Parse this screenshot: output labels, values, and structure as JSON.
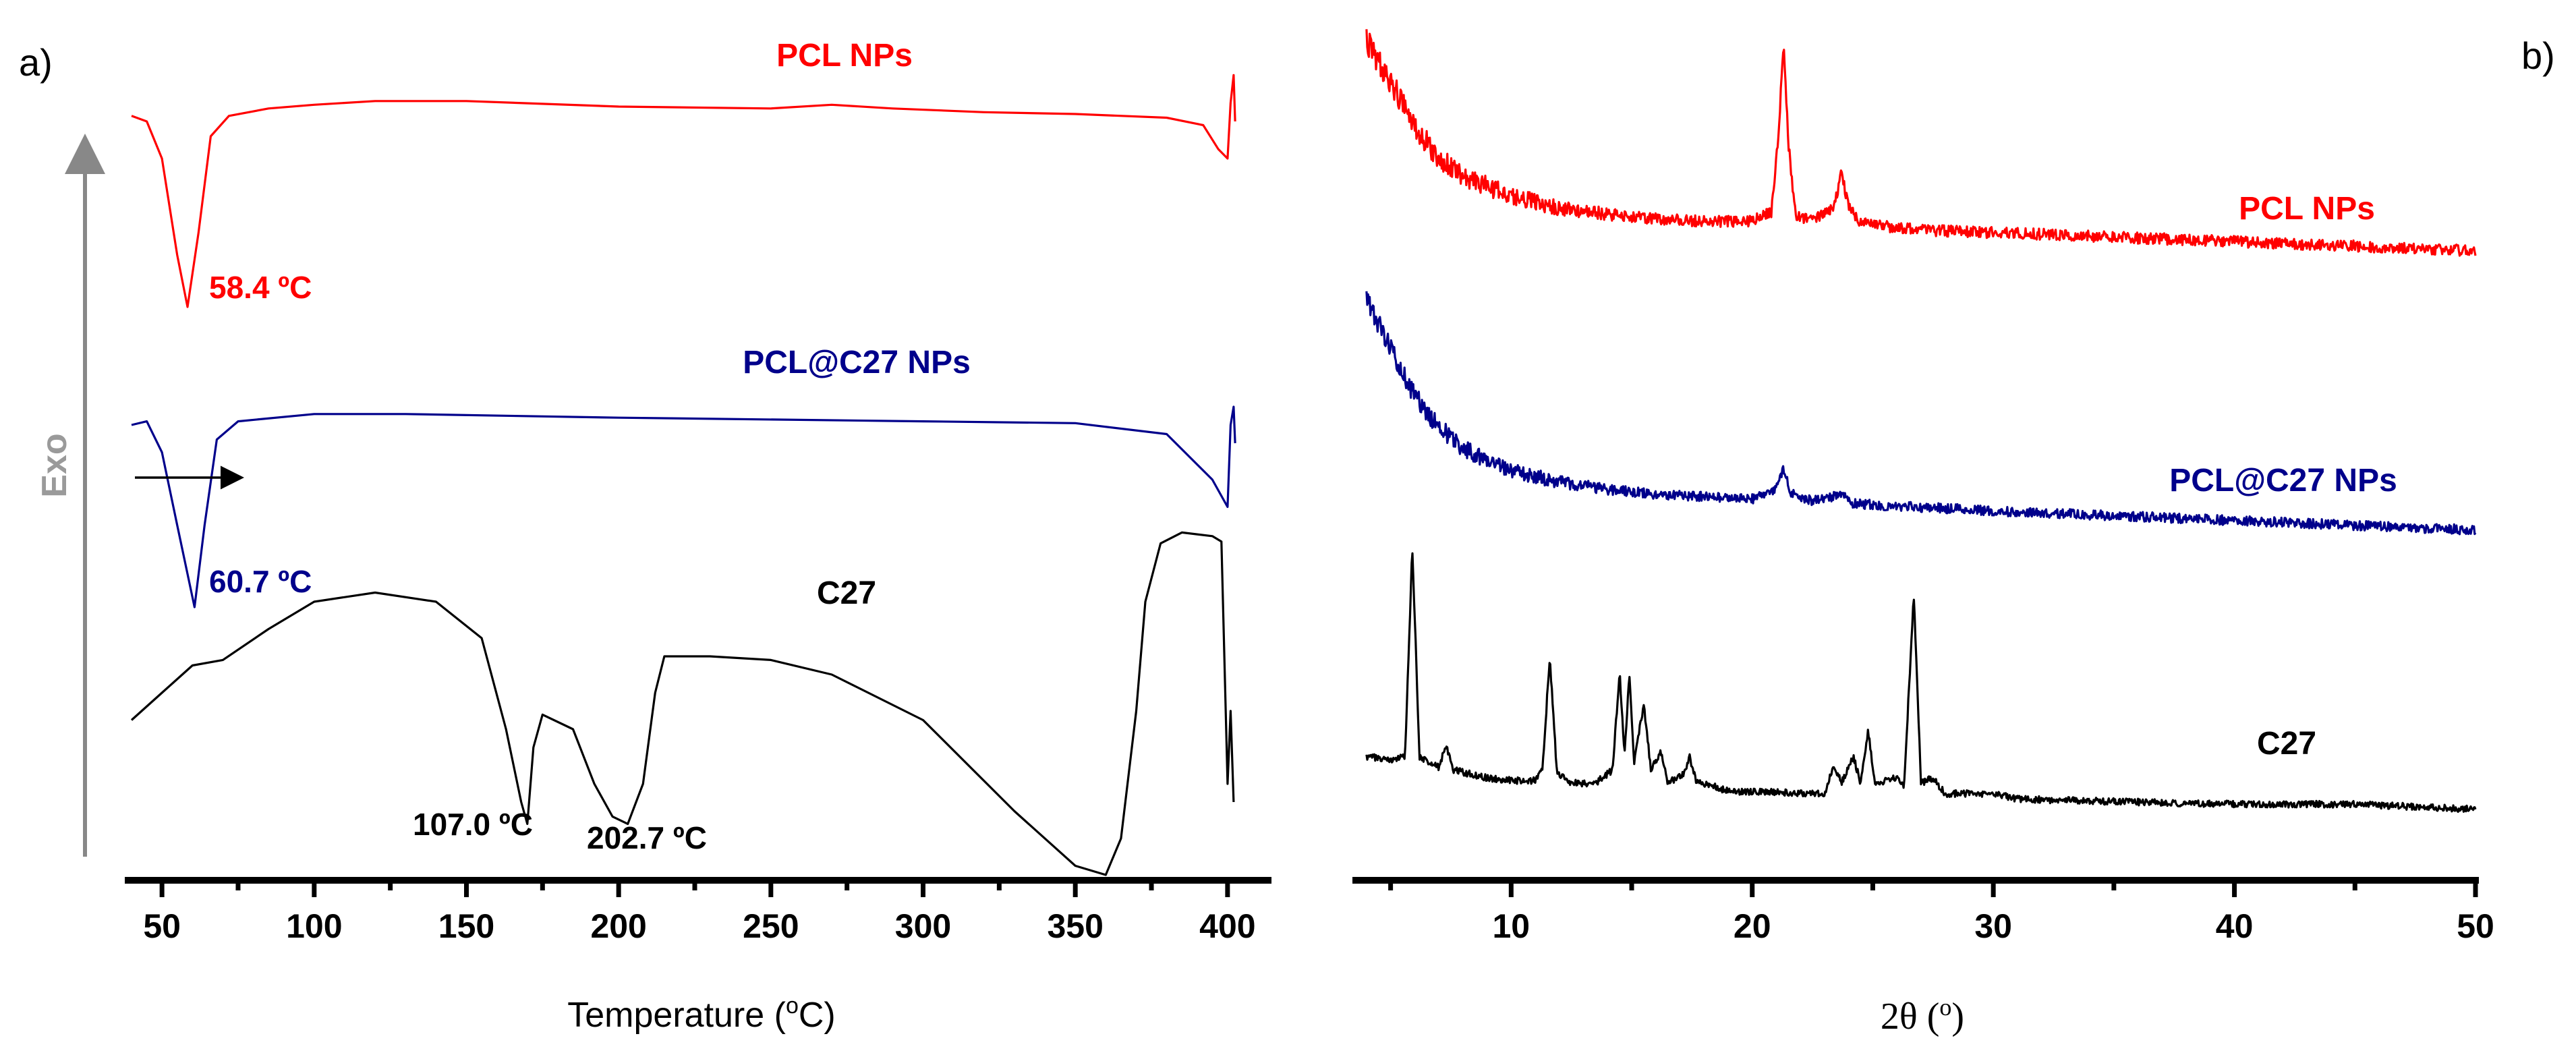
{
  "chart_data": [
    {
      "panel": "a)",
      "type": "line",
      "title": "",
      "xlabel": "Temperature (",
      "xlabel_sup": "o",
      "xlabel_end": "C)",
      "ylabel": "Exo",
      "xlim": [
        40,
        410
      ],
      "xticks": [
        50,
        100,
        150,
        200,
        250,
        300,
        350,
        400
      ],
      "series": [
        {
          "name": "PCL NPs",
          "color": "#ff0000",
          "annotations": [
            {
              "text": "58.4 ºC",
              "x": 58.4
            }
          ],
          "points": [
            [
              40,
              0.03
            ],
            [
              45,
              0.0
            ],
            [
              50,
              -0.2
            ],
            [
              55,
              -0.72
            ],
            [
              58.4,
              -1.0
            ],
            [
              62,
              -0.6
            ],
            [
              66,
              -0.08
            ],
            [
              72,
              0.03
            ],
            [
              85,
              0.07
            ],
            [
              100,
              0.09
            ],
            [
              120,
              0.11
            ],
            [
              150,
              0.11
            ],
            [
              200,
              0.08
            ],
            [
              250,
              0.07
            ],
            [
              270,
              0.09
            ],
            [
              290,
              0.07
            ],
            [
              320,
              0.05
            ],
            [
              350,
              0.04
            ],
            [
              380,
              0.02
            ],
            [
              392,
              -0.02
            ],
            [
              397,
              -0.15
            ],
            [
              400,
              -0.2
            ],
            [
              401,
              0.1
            ],
            [
              402,
              0.25
            ],
            [
              402.5,
              0.0
            ]
          ]
        },
        {
          "name": "PCL@C27 NPs",
          "color": "#00008b",
          "annotations": [
            {
              "text": "60.7 ºC",
              "x": 60.7
            }
          ],
          "points": [
            [
              40,
              0.0
            ],
            [
              45,
              0.02
            ],
            [
              50,
              -0.15
            ],
            [
              55,
              -0.55
            ],
            [
              60.7,
              -1.0
            ],
            [
              64,
              -0.55
            ],
            [
              68,
              -0.08
            ],
            [
              75,
              0.02
            ],
            [
              100,
              0.06
            ],
            [
              130,
              0.06
            ],
            [
              200,
              0.04
            ],
            [
              300,
              0.02
            ],
            [
              350,
              0.01
            ],
            [
              380,
              -0.05
            ],
            [
              395,
              -0.3
            ],
            [
              400,
              -0.45
            ],
            [
              401,
              0.0
            ],
            [
              402,
              0.1
            ],
            [
              402.5,
              -0.1
            ]
          ]
        },
        {
          "name": "C27",
          "color": "#000000",
          "annotations": [
            {
              "text": "107.0 ºC",
              "x": 107.0
            },
            {
              "text": "202.7 ºC",
              "x": 202.7
            }
          ],
          "points": [
            [
              40,
              -0.25
            ],
            [
              50,
              -0.1
            ],
            [
              60,
              0.05
            ],
            [
              70,
              0.08
            ],
            [
              85,
              0.25
            ],
            [
              100,
              0.4
            ],
            [
              120,
              0.45
            ],
            [
              140,
              0.4
            ],
            [
              155,
              0.2
            ],
            [
              163,
              -0.3
            ],
            [
              168,
              -0.7
            ],
            [
              170,
              -0.82
            ],
            [
              172,
              -0.4
            ],
            [
              175,
              -0.22
            ],
            [
              185,
              -0.3
            ],
            [
              192,
              -0.6
            ],
            [
              198,
              -0.78
            ],
            [
              203,
              -0.82
            ],
            [
              208,
              -0.6
            ],
            [
              212,
              -0.1
            ],
            [
              215,
              0.1
            ],
            [
              230,
              0.1
            ],
            [
              250,
              0.08
            ],
            [
              270,
              0.0
            ],
            [
              300,
              -0.25
            ],
            [
              330,
              -0.75
            ],
            [
              350,
              -1.05
            ],
            [
              360,
              -1.1
            ],
            [
              365,
              -0.9
            ],
            [
              370,
              -0.2
            ],
            [
              373,
              0.4
            ],
            [
              378,
              0.72
            ],
            [
              385,
              0.78
            ],
            [
              395,
              0.76
            ],
            [
              398,
              0.73
            ],
            [
              400,
              -0.6
            ],
            [
              401,
              -0.2
            ],
            [
              402,
              -0.7
            ]
          ]
        }
      ]
    },
    {
      "panel": "b)",
      "type": "line",
      "title": "",
      "xlabel": "2θ (",
      "xlabel_sup": "o",
      "xlabel_end": ")",
      "ylabel": "",
      "xlim": [
        3.5,
        50
      ],
      "xticks": [
        10,
        20,
        30,
        40,
        50
      ],
      "series": [
        {
          "name": "PCL NPs",
          "color": "#ff0000",
          "points": [
            [
              4,
              1.0
            ],
            [
              5,
              0.82
            ],
            [
              6,
              0.62
            ],
            [
              7,
              0.48
            ],
            [
              8,
              0.4
            ],
            [
              10,
              0.31
            ],
            [
              12,
              0.26
            ],
            [
              14,
              0.23
            ],
            [
              16,
              0.21
            ],
            [
              18,
              0.2
            ],
            [
              20,
              0.2
            ],
            [
              20.8,
              0.24
            ],
            [
              21.1,
              0.6
            ],
            [
              21.3,
              1.0
            ],
            [
              21.5,
              0.55
            ],
            [
              21.8,
              0.22
            ],
            [
              22.5,
              0.2
            ],
            [
              23.4,
              0.26
            ],
            [
              23.7,
              0.42
            ],
            [
              24.0,
              0.26
            ],
            [
              24.5,
              0.19
            ],
            [
              27,
              0.16
            ],
            [
              30,
              0.15
            ],
            [
              35,
              0.13
            ],
            [
              40,
              0.11
            ],
            [
              45,
              0.09
            ],
            [
              50,
              0.07
            ]
          ]
        },
        {
          "name": "PCL@C27 NPs",
          "color": "#00008b",
          "points": [
            [
              4,
              1.0
            ],
            [
              5,
              0.8
            ],
            [
              6,
              0.6
            ],
            [
              7,
              0.47
            ],
            [
              8,
              0.38
            ],
            [
              10,
              0.29
            ],
            [
              12,
              0.24
            ],
            [
              14,
              0.21
            ],
            [
              16,
              0.19
            ],
            [
              18,
              0.18
            ],
            [
              20,
              0.17
            ],
            [
              20.9,
              0.2
            ],
            [
              21.3,
              0.3
            ],
            [
              21.6,
              0.2
            ],
            [
              22.5,
              0.16
            ],
            [
              23.7,
              0.19
            ],
            [
              24.2,
              0.15
            ],
            [
              30,
              0.12
            ],
            [
              35,
              0.1
            ],
            [
              40,
              0.08
            ],
            [
              45,
              0.06
            ],
            [
              50,
              0.04
            ]
          ]
        },
        {
          "name": "C27",
          "color": "#000000",
          "points": [
            [
              4,
              0.2
            ],
            [
              5,
              0.19
            ],
            [
              5.6,
              0.2
            ],
            [
              5.9,
              1.0
            ],
            [
              6.2,
              0.2
            ],
            [
              7,
              0.16
            ],
            [
              7.3,
              0.24
            ],
            [
              7.6,
              0.15
            ],
            [
              9,
              0.12
            ],
            [
              10,
              0.11
            ],
            [
              11,
              0.11
            ],
            [
              11.3,
              0.15
            ],
            [
              11.6,
              0.58
            ],
            [
              11.9,
              0.14
            ],
            [
              12.5,
              0.1
            ],
            [
              13.5,
              0.1
            ],
            [
              14.2,
              0.15
            ],
            [
              14.5,
              0.52
            ],
            [
              14.7,
              0.2
            ],
            [
              14.9,
              0.52
            ],
            [
              15.1,
              0.18
            ],
            [
              15.5,
              0.4
            ],
            [
              15.8,
              0.15
            ],
            [
              16.2,
              0.22
            ],
            [
              16.5,
              0.1
            ],
            [
              17.2,
              0.14
            ],
            [
              17.4,
              0.2
            ],
            [
              17.7,
              0.1
            ],
            [
              18,
              0.1
            ],
            [
              19,
              0.07
            ],
            [
              23,
              0.06
            ],
            [
              23.4,
              0.17
            ],
            [
              23.7,
              0.1
            ],
            [
              24.2,
              0.2
            ],
            [
              24.5,
              0.1
            ],
            [
              24.8,
              0.3
            ],
            [
              25.1,
              0.1
            ],
            [
              26,
              0.12
            ],
            [
              26.3,
              0.09
            ],
            [
              26.7,
              0.82
            ],
            [
              27.0,
              0.1
            ],
            [
              27.5,
              0.12
            ],
            [
              28,
              0.06
            ],
            [
              30,
              0.06
            ],
            [
              31,
              0.04
            ],
            [
              35,
              0.03
            ],
            [
              40,
              0.02
            ],
            [
              45,
              0.02
            ],
            [
              50,
              0.0
            ]
          ]
        }
      ]
    }
  ]
}
